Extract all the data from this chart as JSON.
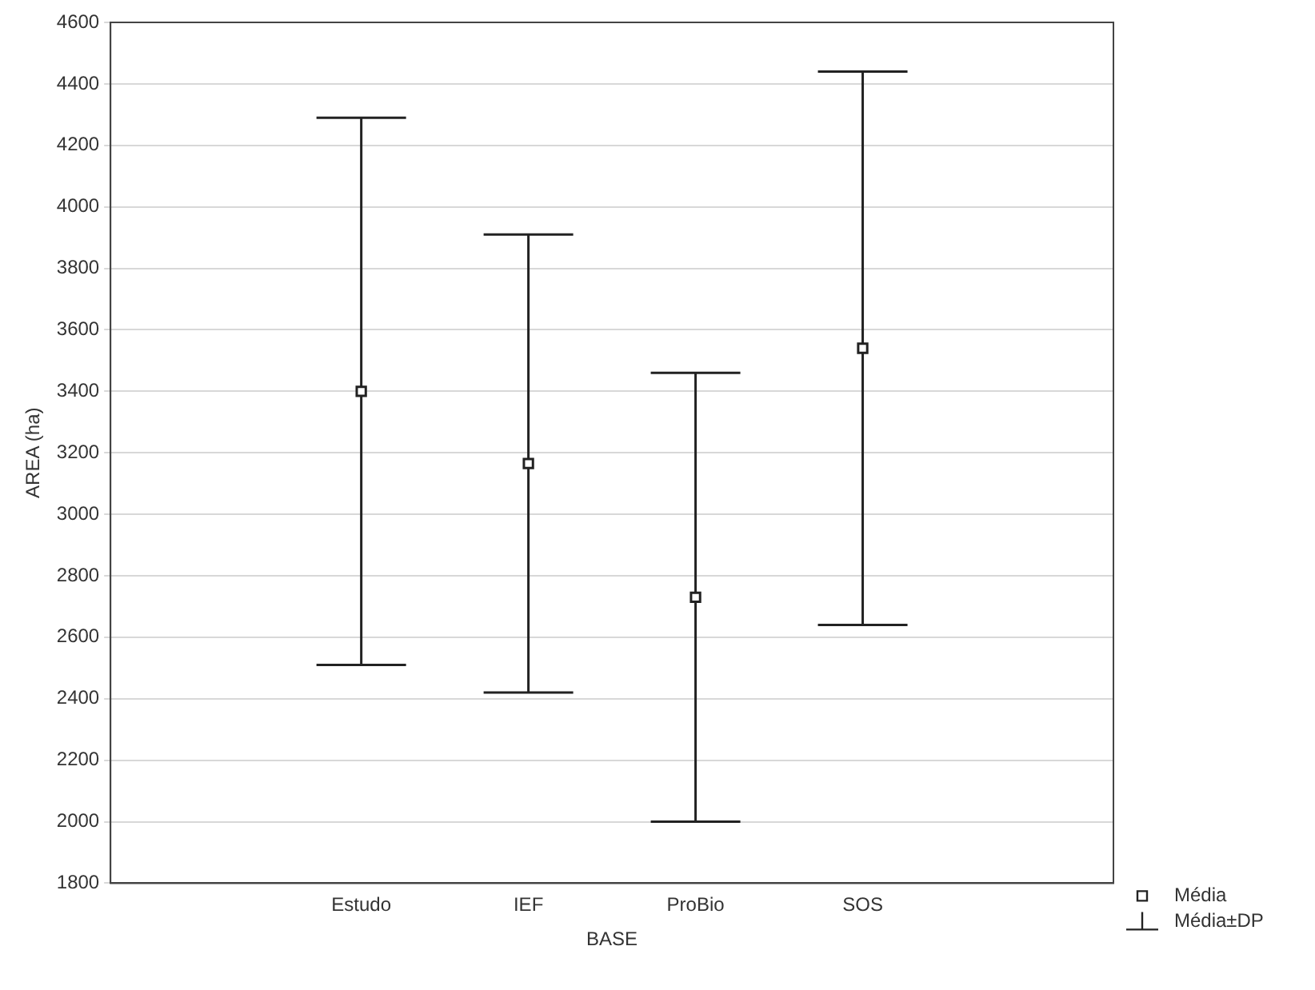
{
  "chart_data": {
    "type": "scatter",
    "xlabel": "BASE",
    "ylabel": "AREA (ha)",
    "categories": [
      null,
      "Estudo",
      "IEF",
      "ProBio",
      "SOS",
      null
    ],
    "series": [
      {
        "name": "Média",
        "color": "#222222",
        "values": [
          null,
          3400,
          3165,
          2730,
          3540,
          null
        ],
        "errors": [
          null,
          890,
          745,
          730,
          900,
          null
        ]
      }
    ],
    "annotations": [
      "Média±DP"
    ],
    "ylim": [
      1800,
      4600
    ],
    "yticks": [
      1800,
      2000,
      2200,
      2400,
      2600,
      2800,
      3000,
      3200,
      3400,
      3600,
      3800,
      4000,
      4200,
      4400,
      4600
    ],
    "grid": "y",
    "legend": "bottom right",
    "marker": "square"
  }
}
